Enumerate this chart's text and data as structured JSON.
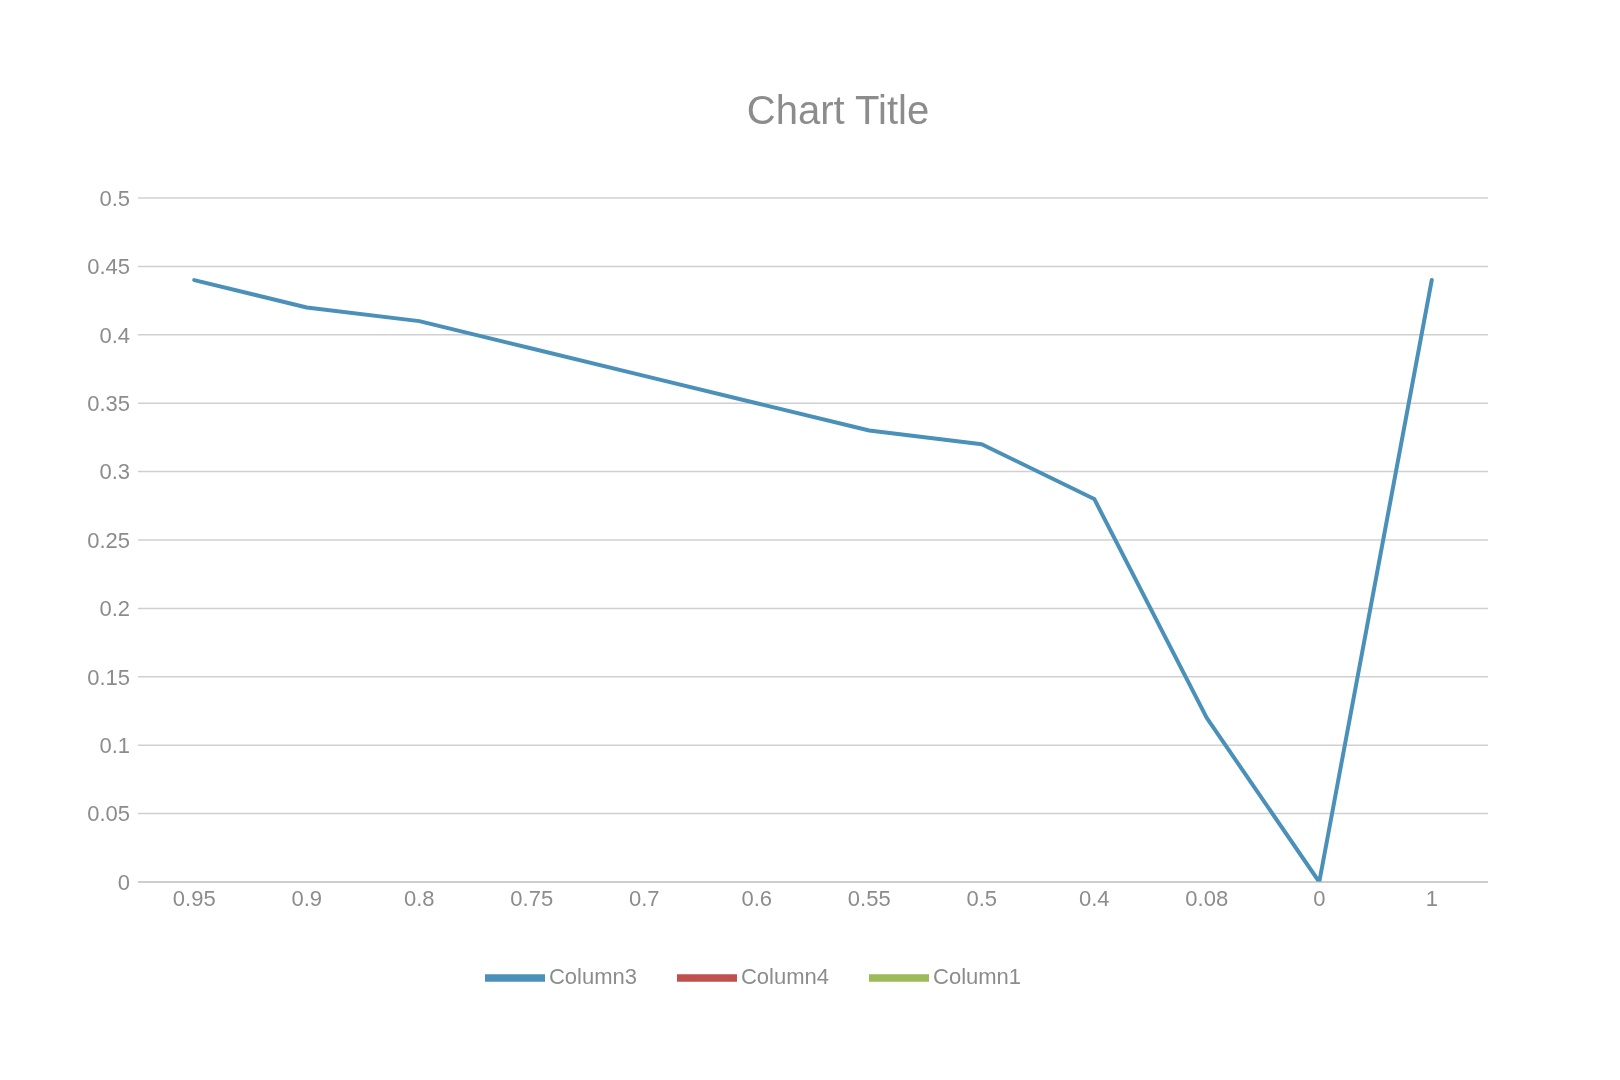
{
  "chart_data": {
    "type": "line",
    "title": "Chart Title",
    "categories": [
      "0.95",
      "0.9",
      "0.8",
      "0.75",
      "0.7",
      "0.6",
      "0.55",
      "0.5",
      "0.4",
      "0.08",
      "0",
      "1"
    ],
    "series": [
      {
        "name": "Column3",
        "color": "#4a90b8",
        "values": [
          0.44,
          0.42,
          0.41,
          0.39,
          0.37,
          0.35,
          0.33,
          0.32,
          0.28,
          0.12,
          0,
          0.44
        ]
      },
      {
        "name": "Column4",
        "color": "#c0504d",
        "values": [
          null,
          null,
          null,
          null,
          null,
          null,
          null,
          null,
          null,
          null,
          null,
          null
        ]
      },
      {
        "name": "Column1",
        "color": "#9bbb59",
        "values": [
          null,
          null,
          null,
          null,
          null,
          null,
          null,
          null,
          null,
          null,
          null,
          null
        ]
      }
    ],
    "ylim": [
      0,
      0.5
    ],
    "yticks": [
      0,
      0.05,
      0.1,
      0.15,
      0.2,
      0.25,
      0.3,
      0.35,
      0.4,
      0.45,
      0.5
    ],
    "grid": "y",
    "legend": "bottom"
  }
}
